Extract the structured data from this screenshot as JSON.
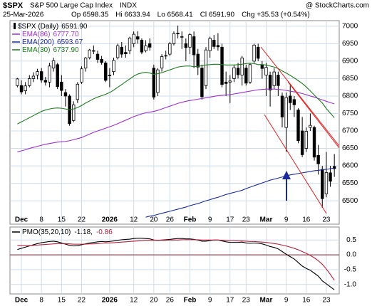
{
  "header": {
    "symbol": "$SPX",
    "name": "S&P 500 Large Cap Index",
    "exchange": "INDX",
    "date": "25-Mar-2026",
    "source": "@ StockCharts.com",
    "quote": [
      "Op 6598.35",
      "Hi 6633.94",
      "Lo 6568.41",
      "Cl 6591.90",
      "Chg +35.53 (+0.54%)"
    ]
  },
  "chart_data": [
    {
      "type": "candlestick",
      "legend_name": "$SPX (Daily)",
      "legend_value": "6591.90",
      "color": "#000000",
      "categories": [
        null,
        "Dec",
        null,
        null,
        null,
        null,
        "8",
        null,
        null,
        null,
        null,
        "15",
        null,
        null,
        null,
        null,
        "22",
        null,
        null,
        null,
        null,
        null,
        null,
        "2026",
        null,
        null,
        null,
        null,
        null,
        "12",
        null,
        null,
        null,
        null,
        "20",
        null,
        null,
        null,
        "26",
        null,
        null,
        null,
        null,
        "Feb",
        null,
        null,
        null,
        null,
        "9",
        null,
        null,
        null,
        null,
        "17",
        null,
        null,
        null,
        "23",
        null,
        null,
        null,
        null,
        "Mar",
        null,
        null,
        null,
        null,
        "9",
        null,
        null,
        null,
        null,
        "16",
        null,
        null,
        null,
        null,
        "23",
        null,
        null
      ],
      "open": [
        6830,
        6830,
        6815,
        6830,
        6850,
        6860,
        6870,
        6845,
        6840,
        6880,
        6890,
        6840,
        6810,
        6800,
        6730,
        6790,
        6840,
        6880,
        6910,
        6930,
        6920,
        6905,
        6895,
        6860,
        6870,
        6910,
        6940,
        6925,
        6930,
        6950,
        6970,
        6960,
        6930,
        6950,
        6880,
        6810,
        6880,
        6915,
        6920,
        6950,
        6980,
        6970,
        6950,
        6940,
        6970,
        6920,
        6880,
        6830,
        6930,
        6960,
        6945,
        6940,
        6840,
        6840,
        6850,
        6880,
        6860,
        6880,
        6840,
        6900,
        6940,
        6890,
        6860,
        6860,
        6830,
        6860,
        6800,
        6710,
        6800,
        6790,
        6760,
        6700,
        6650,
        6710,
        6710,
        6630,
        6590,
        6520,
        6580,
        6598.35
      ],
      "high": [
        6852,
        6845,
        6840,
        6860,
        6868,
        6878,
        6880,
        6855,
        6895,
        6910,
        6895,
        6860,
        6820,
        6805,
        6785,
        6840,
        6885,
        6912,
        6935,
        6945,
        6930,
        6915,
        6900,
        6880,
        6910,
        6950,
        6955,
        6945,
        6970,
        6985,
        6986,
        6965,
        6960,
        6965,
        6890,
        6880,
        6920,
        6930,
        6955,
        6985,
        7002,
        6985,
        6965,
        6980,
        6985,
        6935,
        6890,
        6940,
        6970,
        6975,
        6980,
        6950,
        6870,
        6860,
        6890,
        6895,
        6915,
        6890,
        6895,
        6950,
        6950,
        6900,
        6895,
        6870,
        6880,
        6870,
        6810,
        6810,
        6830,
        6800,
        6765,
        6740,
        6710,
        6750,
        6715,
        6660,
        6600,
        6640,
        6600,
        6633.94
      ],
      "low": [
        6825,
        6805,
        6805,
        6825,
        6840,
        6848,
        6838,
        6830,
        6825,
        6870,
        6820,
        6800,
        6770,
        6715,
        6725,
        6780,
        6835,
        6870,
        6905,
        6920,
        6895,
        6890,
        6840,
        6825,
        6860,
        6905,
        6910,
        6910,
        6920,
        6940,
        6950,
        6920,
        6925,
        6930,
        6790,
        6800,
        6870,
        6905,
        6915,
        6945,
        6965,
        6935,
        6900,
        6920,
        6880,
        6860,
        6790,
        6820,
        6910,
        6935,
        6930,
        6825,
        6800,
        6780,
        6840,
        6850,
        6830,
        6830,
        6835,
        6895,
        6900,
        6850,
        6800,
        6770,
        6820,
        6800,
        6710,
        6640,
        6760,
        6740,
        6665,
        6625,
        6640,
        6700,
        6615,
        6575,
        6480,
        6510,
        6540,
        6568.41
      ],
      "close": [
        6849,
        6812,
        6829,
        6850,
        6857,
        6870,
        6846,
        6840,
        6886,
        6901,
        6827,
        6816,
        6800,
        6721,
        6775,
        6834,
        6878,
        6909,
        6932,
        6929,
        6905,
        6896,
        6845,
        6858,
        6902,
        6944,
        6920,
        6921,
        6966,
        6977,
        6963,
        6926,
        6944,
        6940,
        6797,
        6875,
        6913,
        6916,
        6950,
        6979,
        6978,
        6969,
        6939,
        6976,
        6918,
        6883,
        6798,
        6932,
        6965,
        6942,
        6941,
        6833,
        6836,
        6843,
        6881,
        6861,
        6909,
        6837,
        6890,
        6946,
        6908,
        6879,
        6882,
        6817,
        6869,
        6830,
        6740,
        6796,
        6781,
        6775,
        6672,
        6632,
        6699,
        6716,
        6625,
        6606,
        6506,
        6581,
        6556,
        6591.9
      ],
      "series": [
        {
          "name": "EMA(86)",
          "legend_value": "6777.70",
          "color": "#9933cc",
          "values": [
            6640,
            6643,
            6646,
            6650,
            6653,
            6656,
            6659,
            6662,
            6664,
            6666,
            6668,
            6669,
            6670,
            6672,
            6675,
            6678,
            6681,
            6686,
            6691,
            6696,
            6700,
            6704,
            6708,
            6712,
            6716,
            6721,
            6726,
            6731,
            6736,
            6741,
            6745,
            6749,
            6752,
            6754,
            6756,
            6759,
            6763,
            6767,
            6771,
            6775,
            6779,
            6782,
            6785,
            6787,
            6789,
            6791,
            6793,
            6795,
            6797,
            6799,
            6801,
            6802,
            6803,
            6804,
            6806,
            6808,
            6810,
            6812,
            6814,
            6816,
            6818,
            6819,
            6820,
            6820,
            6820,
            6819,
            6818,
            6816,
            6814,
            6812,
            6810,
            6807,
            6804,
            6800,
            6797,
            6793,
            6789,
            6785,
            6781,
            6777.7
          ]
        },
        {
          "name": "EMA(200)",
          "legend_value": "6593.67",
          "color": "#1a2a99",
          "values": [
            null,
            null,
            null,
            null,
            null,
            null,
            null,
            null,
            null,
            null,
            null,
            null,
            null,
            null,
            null,
            null,
            null,
            null,
            null,
            null,
            null,
            null,
            null,
            null,
            null,
            null,
            null,
            null,
            null,
            null,
            null,
            null,
            6453,
            6456,
            6458,
            6461,
            6464,
            6467,
            6470,
            6473,
            6476,
            6479,
            6482,
            6486,
            6489,
            6492,
            6496,
            6500,
            6503,
            6507,
            6510,
            6514,
            6518,
            6521,
            6524,
            6527,
            6530,
            6535,
            6539,
            6543,
            6547,
            6551,
            6555,
            6559,
            6562,
            6565,
            6568,
            6571,
            6574,
            6576,
            6578,
            6580,
            6582,
            6584,
            6586,
            6587,
            6589,
            6590,
            6592,
            6593.67
          ]
        },
        {
          "name": "EMA(30)",
          "legend_value": "6737.90",
          "color": "#1f7a1f",
          "values": [
            6720,
            6726,
            6732,
            6738,
            6744,
            6750,
            6756,
            6760,
            6763,
            6765,
            6766,
            6765,
            6763,
            6761,
            6763,
            6767,
            6773,
            6780,
            6786,
            6792,
            6797,
            6801,
            6805,
            6810,
            6817,
            6825,
            6833,
            6841,
            6849,
            6857,
            6863,
            6866,
            6868,
            6866,
            6862,
            6864,
            6867,
            6871,
            6875,
            6879,
            6883,
            6885,
            6886,
            6886,
            6884,
            6885,
            6887,
            6889,
            6890,
            6891,
            6891,
            6890,
            6889,
            6889,
            6889,
            6890,
            6891,
            6893,
            6894,
            6893,
            6890,
            6890,
            6889,
            6886,
            6883,
            6879,
            6872,
            6866,
            6859,
            6852,
            6844,
            6836,
            6826,
            6815,
            6803,
            6791,
            6780,
            6764,
            6751,
            6737.9
          ]
        }
      ],
      "ylim": [
        6433,
        7016
      ],
      "yticks": [
        6500,
        6550,
        6600,
        6650,
        6700,
        6750,
        6800,
        6850,
        6900,
        6950,
        7000
      ],
      "grid": true
    },
    {
      "type": "line",
      "categories": [
        null,
        "Dec",
        null,
        null,
        null,
        null,
        "8",
        null,
        null,
        null,
        null,
        "15",
        null,
        null,
        null,
        null,
        "22",
        null,
        null,
        null,
        null,
        null,
        null,
        "2026",
        null,
        null,
        null,
        null,
        null,
        "12",
        null,
        null,
        null,
        null,
        "20",
        null,
        null,
        null,
        "26",
        null,
        null,
        null,
        null,
        "Feb",
        null,
        null,
        null,
        null,
        "9",
        null,
        null,
        null,
        null,
        "17",
        null,
        null,
        null,
        "23",
        null,
        null,
        null,
        null,
        "Mar",
        null,
        null,
        null,
        null,
        "9",
        null,
        null,
        null,
        null,
        "16",
        null,
        null,
        null,
        null,
        "23",
        null,
        null
      ],
      "legend_name": "PMO(35,20,10)",
      "series": [
        {
          "name": "PMO",
          "legend_value": "-1.18,",
          "color": "#000000",
          "values": [
            0.18,
            0.22,
            0.26,
            0.3,
            0.34,
            0.38,
            0.41,
            0.43,
            0.45,
            0.46,
            0.44,
            0.4,
            0.36,
            0.32,
            0.3,
            0.31,
            0.34,
            0.37,
            0.4,
            0.42,
            0.44,
            0.45,
            0.44,
            0.45,
            0.47,
            0.49,
            0.51,
            0.52,
            0.53,
            0.55,
            0.56,
            0.56,
            0.55,
            0.54,
            0.5,
            0.49,
            0.5,
            0.51,
            0.52,
            0.54,
            0.55,
            0.55,
            0.54,
            0.54,
            0.52,
            0.5,
            0.46,
            0.46,
            0.48,
            0.5,
            0.5,
            0.47,
            0.44,
            0.42,
            0.42,
            0.42,
            0.43,
            0.4,
            0.39,
            0.4,
            0.39,
            0.37,
            0.33,
            0.28,
            0.25,
            0.2,
            0.11,
            0.02,
            -0.06,
            -0.14,
            -0.26,
            -0.38,
            -0.46,
            -0.52,
            -0.62,
            -0.72,
            -0.88,
            -0.98,
            -1.08,
            -1.18
          ]
        },
        {
          "name": "Signal",
          "legend_value": "-0.86",
          "color": "#b0203a",
          "values": [
            0.32,
            0.31,
            0.31,
            0.31,
            0.32,
            0.33,
            0.34,
            0.35,
            0.36,
            0.37,
            0.38,
            0.38,
            0.38,
            0.37,
            0.36,
            0.36,
            0.36,
            0.36,
            0.37,
            0.37,
            0.38,
            0.39,
            0.4,
            0.4,
            0.41,
            0.42,
            0.43,
            0.44,
            0.45,
            0.46,
            0.47,
            0.48,
            0.49,
            0.49,
            0.49,
            0.49,
            0.49,
            0.49,
            0.5,
            0.5,
            0.5,
            0.51,
            0.51,
            0.51,
            0.51,
            0.51,
            0.5,
            0.5,
            0.5,
            0.5,
            0.5,
            0.49,
            0.49,
            0.48,
            0.48,
            0.47,
            0.47,
            0.46,
            0.45,
            0.45,
            0.44,
            0.43,
            0.42,
            0.4,
            0.38,
            0.36,
            0.33,
            0.3,
            0.26,
            0.22,
            0.17,
            0.11,
            0.05,
            -0.02,
            -0.1,
            -0.2,
            -0.32,
            -0.48,
            -0.66,
            -0.86
          ]
        }
      ],
      "reference_line": 0,
      "reference_color": "#8b1a2a",
      "ylim": [
        -1.32,
        0.94
      ],
      "yticks": [
        0.5,
        {
          "value": 0,
          "label": "0.0"
        },
        -0.5,
        {
          "value": -1,
          "label": "-1.0"
        }
      ],
      "grid": true
    }
  ]
}
